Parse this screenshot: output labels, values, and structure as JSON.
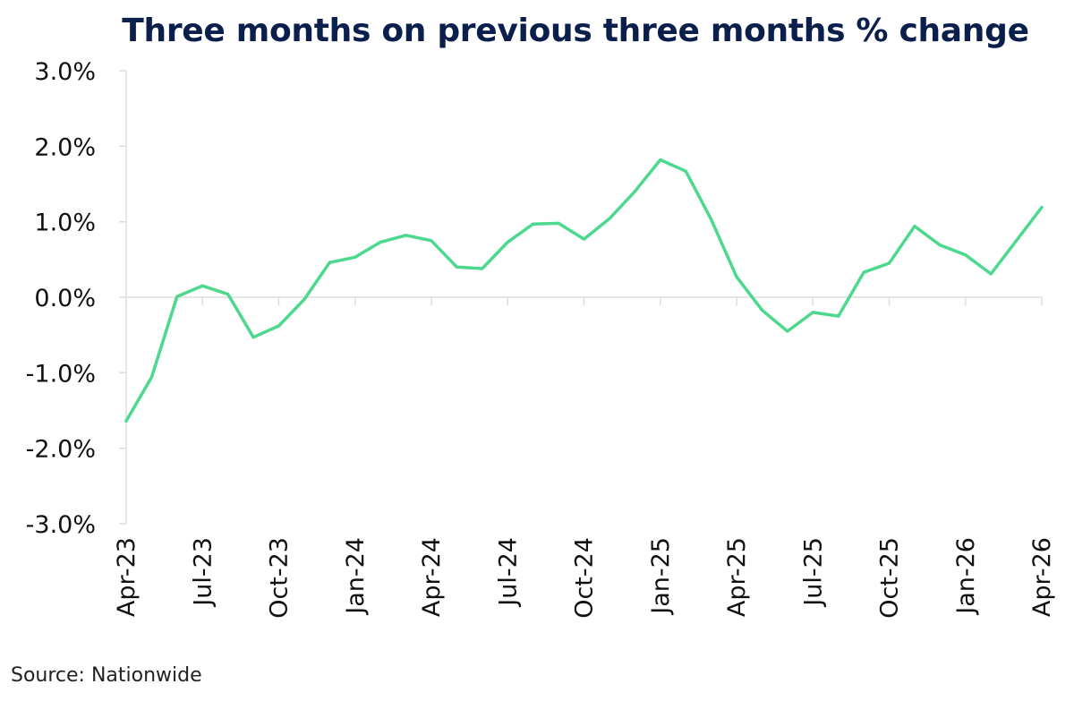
{
  "chart_data": {
    "type": "line",
    "title": "Three months on previous three months % change",
    "source": "Source: Nationwide",
    "xlabel": "",
    "ylabel": "",
    "ylim": [
      -3.0,
      3.0
    ],
    "yticks": [
      {
        "value": 3.0,
        "label": "3.0%"
      },
      {
        "value": 2.0,
        "label": "2.0%"
      },
      {
        "value": 1.0,
        "label": "1.0%"
      },
      {
        "value": 0.0,
        "label": "0.0%"
      },
      {
        "value": -1.0,
        "label": "-1.0%"
      },
      {
        "value": -2.0,
        "label": "-2.0%"
      },
      {
        "value": -3.0,
        "label": "-3.0%"
      }
    ],
    "xticks": [
      {
        "index": 0,
        "label": "Apr-23"
      },
      {
        "index": 3,
        "label": "Jul-23"
      },
      {
        "index": 6,
        "label": "Oct-23"
      },
      {
        "index": 9,
        "label": "Jan-24"
      },
      {
        "index": 12,
        "label": "Apr-24"
      },
      {
        "index": 15,
        "label": "Jul-24"
      },
      {
        "index": 18,
        "label": "Oct-24"
      },
      {
        "index": 21,
        "label": "Jan-25"
      },
      {
        "index": 24,
        "label": "Apr-25"
      },
      {
        "index": 27,
        "label": "Jul-25"
      },
      {
        "index": 30,
        "label": "Oct-25"
      },
      {
        "index": 33,
        "label": "Jan-26"
      },
      {
        "index": 36,
        "label": "Apr-26"
      }
    ],
    "x": [
      "Apr-23",
      "May-23",
      "Jun-23",
      "Jul-23",
      "Aug-23",
      "Sep-23",
      "Oct-23",
      "Nov-23",
      "Dec-23",
      "Jan-24",
      "Feb-24",
      "Mar-24",
      "Apr-24",
      "May-24",
      "Jun-24",
      "Jul-24",
      "Aug-24",
      "Sep-24",
      "Oct-24",
      "Nov-24",
      "Dec-24",
      "Jan-25",
      "Feb-25",
      "Mar-25",
      "Apr-25",
      "May-25",
      "Jun-25",
      "Jul-25",
      "Aug-25",
      "Sep-25",
      "Oct-25",
      "Nov-25",
      "Dec-25",
      "Jan-26",
      "Feb-26",
      "Mar-26",
      "Apr-26"
    ],
    "series": [
      {
        "color": "#4cd98e",
        "values": [
          -1.64,
          -1.06,
          0.01,
          0.15,
          0.04,
          -0.53,
          -0.38,
          -0.03,
          0.46,
          0.53,
          0.73,
          0.82,
          0.75,
          0.4,
          0.38,
          0.73,
          0.97,
          0.98,
          0.77,
          1.04,
          1.4,
          1.82,
          1.67,
          1.03,
          0.27,
          -0.17,
          -0.45,
          -0.2,
          -0.25,
          0.33,
          0.45,
          0.94,
          0.69,
          0.56,
          0.31,
          0.75,
          1.19
        ]
      }
    ],
    "grid": false,
    "legend": "none",
    "colors": {
      "title": "#0b1f4d",
      "axis": "#dddddd",
      "line": "#4cd98e",
      "text": "#111111"
    }
  }
}
